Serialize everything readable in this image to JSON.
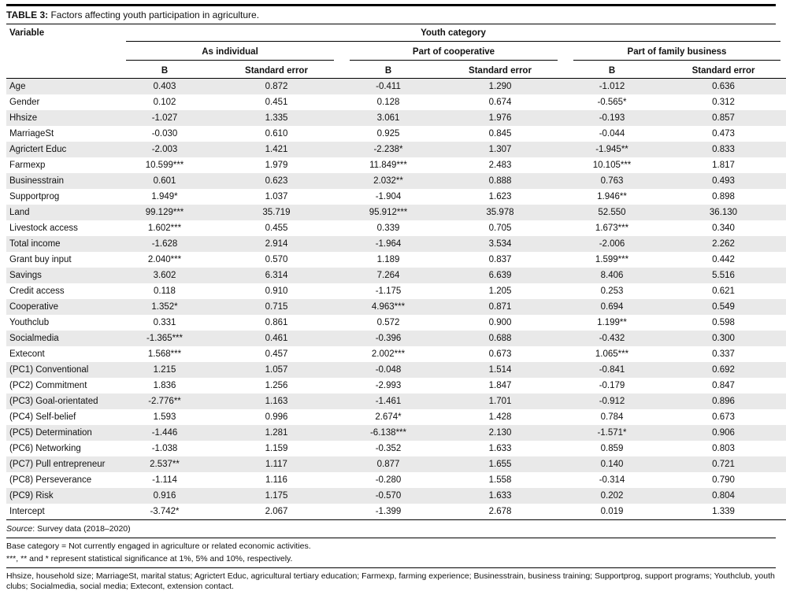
{
  "table": {
    "title_label": "TABLE 3:",
    "title_text": "Factors affecting youth participation in agriculture.",
    "variable_header": "Variable",
    "category_header": "Youth category",
    "groups": [
      {
        "label": "As individual"
      },
      {
        "label": "Part of cooperative"
      },
      {
        "label": "Part of family business"
      }
    ],
    "sub_headers": {
      "b": "B",
      "se": "Standard error"
    },
    "rows": [
      {
        "variable": "Age",
        "values": [
          "0.403",
          "0.872",
          "-0.411",
          "1.290",
          "-1.012",
          "0.636"
        ]
      },
      {
        "variable": "Gender",
        "values": [
          "0.102",
          "0.451",
          "0.128",
          "0.674",
          "-0.565*",
          "0.312"
        ]
      },
      {
        "variable": "Hhsize",
        "values": [
          "-1.027",
          "1.335",
          "3.061",
          "1.976",
          "-0.193",
          "0.857"
        ]
      },
      {
        "variable": "MarriageSt",
        "values": [
          "-0.030",
          "0.610",
          "0.925",
          "0.845",
          "-0.044",
          "0.473"
        ]
      },
      {
        "variable": "Agrictert Educ",
        "values": [
          "-2.003",
          "1.421",
          "-2.238*",
          "1.307",
          "-1.945**",
          "0.833"
        ]
      },
      {
        "variable": "Farmexp",
        "values": [
          "10.599***",
          "1.979",
          "11.849***",
          "2.483",
          "10.105***",
          "1.817"
        ]
      },
      {
        "variable": "Businesstrain",
        "values": [
          "0.601",
          "0.623",
          "2.032**",
          "0.888",
          "0.763",
          "0.493"
        ]
      },
      {
        "variable": "Supportprog",
        "values": [
          "1.949*",
          "1.037",
          "-1.904",
          "1.623",
          "1.946**",
          "0.898"
        ]
      },
      {
        "variable": "Land",
        "values": [
          "99.129***",
          "35.719",
          "95.912***",
          "35.978",
          "52.550",
          "36.130"
        ]
      },
      {
        "variable": "Livestock access",
        "values": [
          "1.602***",
          "0.455",
          "0.339",
          "0.705",
          "1.673***",
          "0.340"
        ]
      },
      {
        "variable": "Total income",
        "values": [
          "-1.628",
          "2.914",
          "-1.964",
          "3.534",
          "-2.006",
          "2.262"
        ]
      },
      {
        "variable": "Grant buy input",
        "values": [
          "2.040***",
          "0.570",
          "1.189",
          "0.837",
          "1.599***",
          "0.442"
        ]
      },
      {
        "variable": "Savings",
        "values": [
          "3.602",
          "6.314",
          "7.264",
          "6.639",
          "8.406",
          "5.516"
        ]
      },
      {
        "variable": "Credit access",
        "values": [
          "0.118",
          "0.910",
          "-1.175",
          "1.205",
          "0.253",
          "0.621"
        ]
      },
      {
        "variable": "Cooperative",
        "values": [
          "1.352*",
          "0.715",
          "4.963***",
          "0.871",
          "0.694",
          "0.549"
        ]
      },
      {
        "variable": "Youthclub",
        "values": [
          "0.331",
          "0.861",
          "0.572",
          "0.900",
          "1.199**",
          "0.598"
        ]
      },
      {
        "variable": "Socialmedia",
        "values": [
          "-1.365***",
          "0.461",
          "-0.396",
          "0.688",
          "-0.432",
          "0.300"
        ]
      },
      {
        "variable": "Extecont",
        "values": [
          "1.568***",
          "0.457",
          "2.002***",
          "0.673",
          "1.065***",
          "0.337"
        ]
      },
      {
        "variable": "(PC1) Conventional",
        "values": [
          "1.215",
          "1.057",
          "-0.048",
          "1.514",
          "-0.841",
          "0.692"
        ]
      },
      {
        "variable": "(PC2) Commitment",
        "values": [
          "1.836",
          "1.256",
          "-2.993",
          "1.847",
          "-0.179",
          "0.847"
        ]
      },
      {
        "variable": "(PC3) Goal-orientated",
        "values": [
          "-2.776**",
          "1.163",
          "-1.461",
          "1.701",
          "-0.912",
          "0.896"
        ]
      },
      {
        "variable": "(PC4) Self-belief",
        "values": [
          "1.593",
          "0.996",
          "2.674*",
          "1.428",
          "0.784",
          "0.673"
        ]
      },
      {
        "variable": "(PC5) Determination",
        "values": [
          "-1.446",
          "1.281",
          "-6.138***",
          "2.130",
          "-1.571*",
          "0.906"
        ]
      },
      {
        "variable": "(PC6) Networking",
        "values": [
          "-1.038",
          "1.159",
          "-0.352",
          "1.633",
          "0.859",
          "0.803"
        ]
      },
      {
        "variable": "(PC7) Pull entrepreneur",
        "values": [
          "2.537**",
          "1.117",
          "0.877",
          "1.655",
          "0.140",
          "0.721"
        ]
      },
      {
        "variable": "(PC8) Perseverance",
        "values": [
          "-1.114",
          "1.116",
          "-0.280",
          "1.558",
          "-0.314",
          "0.790"
        ]
      },
      {
        "variable": "(PC9) Risk",
        "values": [
          "0.916",
          "1.175",
          "-0.570",
          "1.633",
          "0.202",
          "0.804"
        ]
      },
      {
        "variable": "Intercept",
        "values": [
          "-3.742*",
          "2.067",
          "-1.399",
          "2.678",
          "0.019",
          "1.339"
        ]
      }
    ],
    "footnotes": {
      "source_label": "Source",
      "source_text": ": Survey data (2018–2020)",
      "base_category": "Base category = Not currently engaged in agriculture or related economic activities.",
      "significance": "***, ** and * represent statistical significance at 1%, 5% and 10%, respectively.",
      "abbreviations": "Hhsize, household size; MarriageSt, marital status; Agrictert Educ, agricultural tertiary education; Farmexp, farming experience; Businesstrain, business training; Supportprog, support programs; Youthclub, youth clubs; Socialmedia, social media; Extecont, extension contact."
    }
  }
}
